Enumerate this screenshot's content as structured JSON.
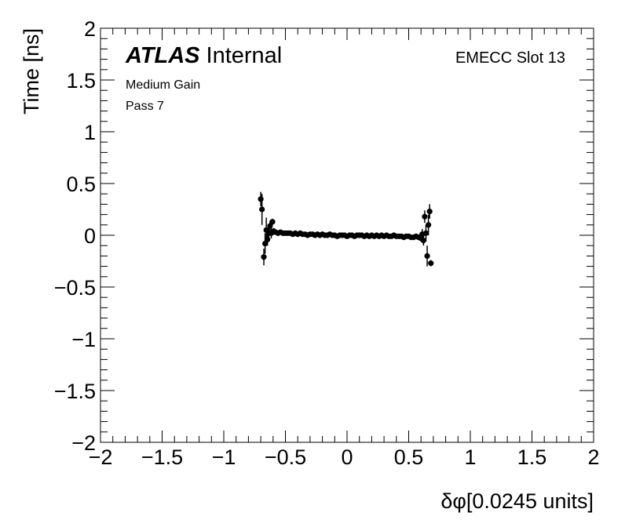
{
  "chart_data": {
    "type": "scatter",
    "xlabel": "δφ[0.0245 units]",
    "ylabel": "Time [ns]",
    "xlim": [
      -2,
      2
    ],
    "ylim": [
      -2,
      2
    ],
    "xticks": [
      "−2",
      "−1.5",
      "−1",
      "−0.5",
      "0",
      "0.5",
      "1",
      "1.5",
      "2"
    ],
    "yticks": [
      "−2",
      "−1.5",
      "−1",
      "−0.5",
      "0",
      "0.5",
      "1",
      "1.5",
      "2"
    ],
    "xtick_values": [
      -2,
      -1.5,
      -1,
      -0.5,
      0,
      0.5,
      1,
      1.5,
      2
    ],
    "ytick_values": [
      -2,
      -1.5,
      -1,
      -0.5,
      0,
      0.5,
      1,
      1.5,
      2
    ],
    "grid": false,
    "marker_color": "#000000",
    "labels": {
      "atlas": "ATLAS",
      "internal": "Internal",
      "line1": "Medium Gain",
      "line2": "Pass 7",
      "slot": "EMECC Slot 13"
    },
    "points": [
      {
        "x": -0.7,
        "y": 0.35,
        "err": 0.07
      },
      {
        "x": -0.69,
        "y": 0.25,
        "err": 0.15
      },
      {
        "x": -0.675,
        "y": -0.21,
        "err": 0.08
      },
      {
        "x": -0.665,
        "y": -0.08,
        "err": 0.1
      },
      {
        "x": -0.655,
        "y": 0.05,
        "err": 0.12
      },
      {
        "x": -0.645,
        "y": -0.04,
        "err": 0.06
      },
      {
        "x": -0.635,
        "y": 0.02,
        "err": 0.06
      },
      {
        "x": -0.625,
        "y": 0.09,
        "err": 0.05
      },
      {
        "x": -0.615,
        "y": 0.02,
        "err": 0.05
      },
      {
        "x": -0.605,
        "y": 0.13,
        "err": 0.03
      },
      {
        "x": -0.595,
        "y": 0.04,
        "err": 0.03
      },
      {
        "x": -0.58,
        "y": 0.03,
        "err": 0.02
      },
      {
        "x": -0.56,
        "y": 0.02,
        "err": 0.02
      },
      {
        "x": -0.54,
        "y": 0.03,
        "err": 0.02
      },
      {
        "x": -0.52,
        "y": 0.02,
        "err": 0.01
      },
      {
        "x": -0.5,
        "y": 0.02,
        "err": 0.01
      },
      {
        "x": -0.48,
        "y": 0.02,
        "err": 0.01
      },
      {
        "x": -0.46,
        "y": 0.02,
        "err": 0.01
      },
      {
        "x": -0.44,
        "y": 0.01,
        "err": 0.01
      },
      {
        "x": -0.42,
        "y": 0.02,
        "err": 0.01
      },
      {
        "x": -0.4,
        "y": 0.01,
        "err": 0.01
      },
      {
        "x": -0.38,
        "y": 0.02,
        "err": 0.01
      },
      {
        "x": -0.36,
        "y": 0.01,
        "err": 0.01
      },
      {
        "x": -0.34,
        "y": 0.01,
        "err": 0.01
      },
      {
        "x": -0.32,
        "y": 0.0,
        "err": 0.01
      },
      {
        "x": -0.3,
        "y": 0.01,
        "err": 0.01
      },
      {
        "x": -0.28,
        "y": 0.01,
        "err": 0.01
      },
      {
        "x": -0.26,
        "y": 0.0,
        "err": 0.01
      },
      {
        "x": -0.24,
        "y": 0.01,
        "err": 0.01
      },
      {
        "x": -0.22,
        "y": 0.0,
        "err": 0.01
      },
      {
        "x": -0.2,
        "y": 0.01,
        "err": 0.01
      },
      {
        "x": -0.18,
        "y": 0.0,
        "err": 0.01
      },
      {
        "x": -0.16,
        "y": 0.0,
        "err": 0.01
      },
      {
        "x": -0.14,
        "y": 0.01,
        "err": 0.01
      },
      {
        "x": -0.12,
        "y": 0.0,
        "err": 0.01
      },
      {
        "x": -0.1,
        "y": 0.0,
        "err": 0.01
      },
      {
        "x": -0.08,
        "y": -0.01,
        "err": 0.01
      },
      {
        "x": -0.06,
        "y": 0.0,
        "err": 0.01
      },
      {
        "x": -0.04,
        "y": 0.0,
        "err": 0.01
      },
      {
        "x": -0.02,
        "y": 0.0,
        "err": 0.01
      },
      {
        "x": 0.0,
        "y": -0.01,
        "err": 0.01
      },
      {
        "x": 0.02,
        "y": 0.0,
        "err": 0.01
      },
      {
        "x": 0.04,
        "y": 0.0,
        "err": 0.01
      },
      {
        "x": 0.06,
        "y": -0.01,
        "err": 0.01
      },
      {
        "x": 0.08,
        "y": 0.0,
        "err": 0.01
      },
      {
        "x": 0.1,
        "y": 0.0,
        "err": 0.01
      },
      {
        "x": 0.12,
        "y": 0.0,
        "err": 0.01
      },
      {
        "x": 0.14,
        "y": -0.01,
        "err": 0.01
      },
      {
        "x": 0.16,
        "y": 0.0,
        "err": 0.01
      },
      {
        "x": 0.18,
        "y": -0.01,
        "err": 0.01
      },
      {
        "x": 0.2,
        "y": 0.0,
        "err": 0.01
      },
      {
        "x": 0.22,
        "y": -0.01,
        "err": 0.01
      },
      {
        "x": 0.24,
        "y": 0.0,
        "err": 0.01
      },
      {
        "x": 0.26,
        "y": -0.01,
        "err": 0.01
      },
      {
        "x": 0.28,
        "y": 0.0,
        "err": 0.01
      },
      {
        "x": 0.3,
        "y": -0.01,
        "err": 0.01
      },
      {
        "x": 0.32,
        "y": 0.0,
        "err": 0.01
      },
      {
        "x": 0.34,
        "y": -0.01,
        "err": 0.01
      },
      {
        "x": 0.36,
        "y": -0.01,
        "err": 0.01
      },
      {
        "x": 0.38,
        "y": 0.0,
        "err": 0.01
      },
      {
        "x": 0.4,
        "y": -0.01,
        "err": 0.01
      },
      {
        "x": 0.42,
        "y": -0.01,
        "err": 0.01
      },
      {
        "x": 0.44,
        "y": -0.01,
        "err": 0.01
      },
      {
        "x": 0.46,
        "y": -0.02,
        "err": 0.01
      },
      {
        "x": 0.48,
        "y": -0.01,
        "err": 0.01
      },
      {
        "x": 0.5,
        "y": -0.01,
        "err": 0.01
      },
      {
        "x": 0.52,
        "y": -0.02,
        "err": 0.01
      },
      {
        "x": 0.54,
        "y": -0.02,
        "err": 0.02
      },
      {
        "x": 0.56,
        "y": -0.01,
        "err": 0.02
      },
      {
        "x": 0.58,
        "y": -0.02,
        "err": 0.02
      },
      {
        "x": 0.6,
        "y": -0.03,
        "err": 0.03
      },
      {
        "x": 0.61,
        "y": 0.01,
        "err": 0.05
      },
      {
        "x": 0.62,
        "y": -0.05,
        "err": 0.05
      },
      {
        "x": 0.63,
        "y": 0.18,
        "err": 0.06
      },
      {
        "x": 0.64,
        "y": 0.02,
        "err": 0.08
      },
      {
        "x": 0.65,
        "y": -0.2,
        "err": 0.1
      },
      {
        "x": 0.66,
        "y": 0.1,
        "err": 0.1
      },
      {
        "x": 0.67,
        "y": 0.23,
        "err": 0.07
      },
      {
        "x": 0.68,
        "y": -0.27,
        "err": 0.03
      }
    ]
  }
}
